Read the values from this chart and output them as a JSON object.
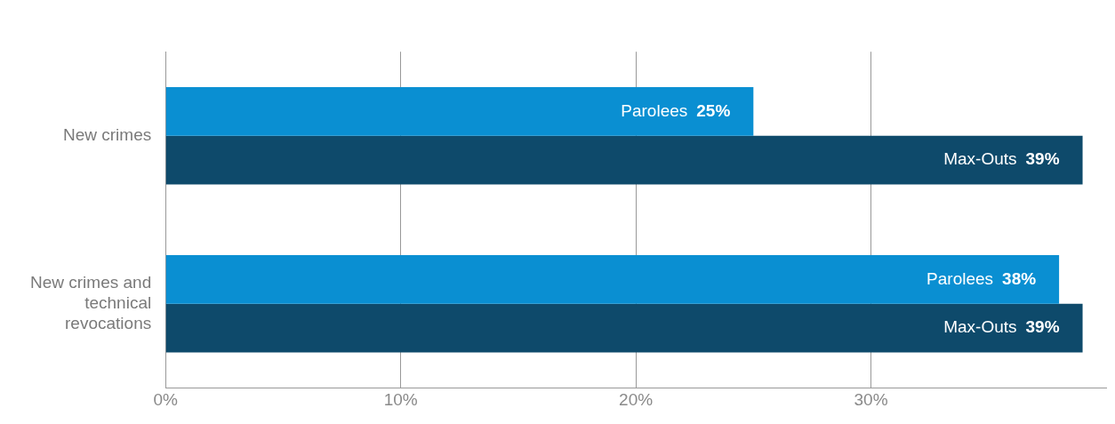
{
  "chart_data": {
    "type": "bar",
    "orientation": "horizontal",
    "categories": [
      "New crimes",
      "New crimes and technical revocations"
    ],
    "series": [
      {
        "name": "Parolees",
        "color": "#0a8fd2",
        "values": [
          25,
          38
        ],
        "value_labels": [
          "25%",
          "38%"
        ]
      },
      {
        "name": "Max-Outs",
        "color": "#0e4a6b",
        "values": [
          39,
          39
        ],
        "value_labels": [
          "39%",
          "39%"
        ]
      }
    ],
    "xlim": [
      0,
      40
    ],
    "xticks": [
      {
        "value": 0,
        "label": "0%"
      },
      {
        "value": 10,
        "label": "10%"
      },
      {
        "value": 20,
        "label": "20%"
      },
      {
        "value": 30,
        "label": "30%"
      }
    ],
    "grid": "x",
    "legend": false
  }
}
